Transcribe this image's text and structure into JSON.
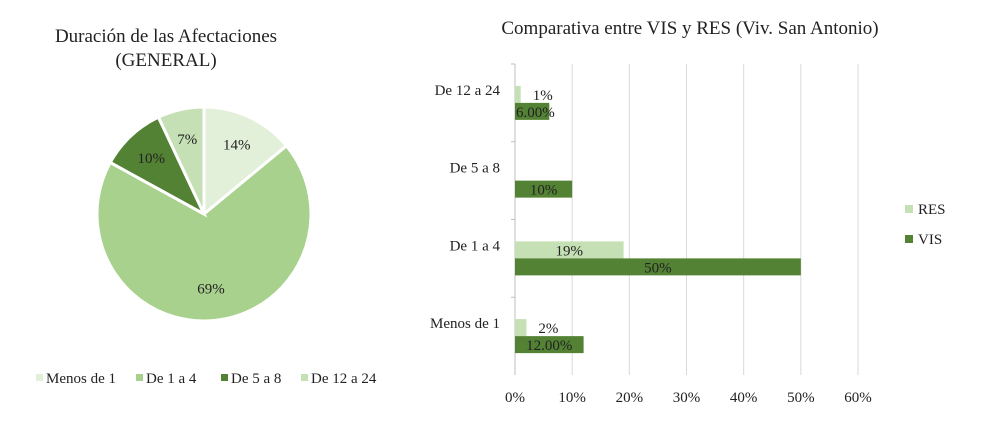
{
  "chart_data": [
    {
      "type": "pie",
      "title": "Duración de las Afectaciones (GENERAL)",
      "title_lines": [
        "Duración de las Afectaciones",
        "(GENERAL)"
      ],
      "categories": [
        "Menos de 1",
        "De 1 a 4",
        "De 5 a 8",
        "De 12 a 24"
      ],
      "values": [
        14,
        69,
        10,
        7
      ],
      "labels": [
        "14%",
        "69%",
        "10%",
        "7%"
      ],
      "colors": [
        "#e2efd9",
        "#a9d18e",
        "#548235",
        "#c5e0b4"
      ],
      "legend": "bottom"
    },
    {
      "type": "bar",
      "orientation": "horizontal",
      "title": "Comparativa entre VIS y RES (Viv. San Antonio)",
      "categories": [
        "Menos de 1",
        "De 1 a 4",
        "De 5 a 8",
        "De 12 a 24"
      ],
      "series": [
        {
          "name": "RES",
          "values": [
            2,
            19,
            null,
            1
          ],
          "labels": [
            "2%",
            "19%",
            "",
            "1%"
          ],
          "color": "#c5e0b4"
        },
        {
          "name": "VIS",
          "values": [
            12,
            50,
            10,
            6
          ],
          "labels": [
            "12.00%",
            "50%",
            "10%",
            "6.00%"
          ],
          "color": "#548235"
        }
      ],
      "xlim": [
        0,
        60
      ],
      "x_ticks": [
        "0%",
        "10%",
        "20%",
        "30%",
        "40%",
        "50%",
        "60%"
      ],
      "grid": true,
      "legend": "right"
    }
  ]
}
